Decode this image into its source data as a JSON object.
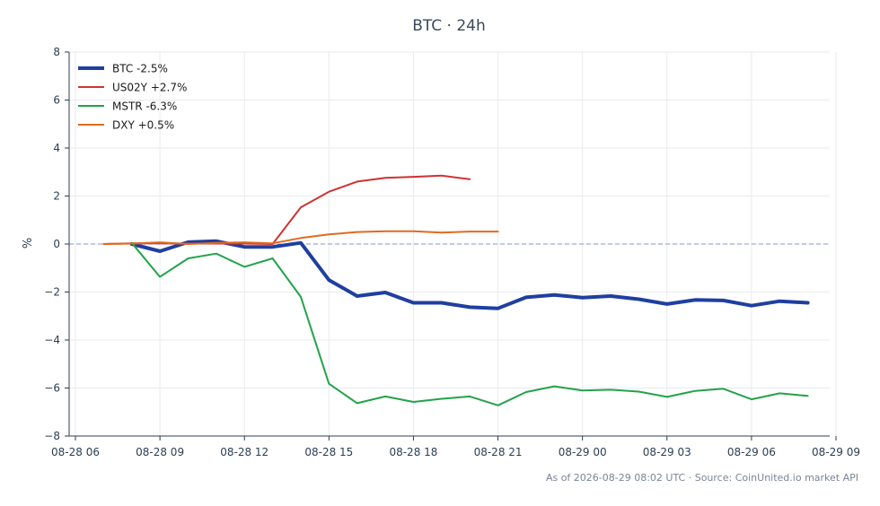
{
  "chart_data": {
    "type": "line",
    "title": "BTC · 24h",
    "xlabel": "",
    "ylabel": "%",
    "ylim": [
      -8,
      8
    ],
    "yticks": [
      -8,
      -6,
      -4,
      -2,
      0,
      2,
      4,
      6,
      8
    ],
    "ytick_labels": [
      "−8",
      "−6",
      "−4",
      "−2",
      "0",
      "2",
      "4",
      "6",
      "8"
    ],
    "xticks": [
      "08-28 06",
      "08-28 09",
      "08-28 12",
      "08-28 15",
      "08-28 18",
      "08-28 21",
      "08-29 00",
      "08-29 03",
      "08-29 06",
      "08-29 09"
    ],
    "xlim_hours": [
      6,
      33
    ],
    "grid": true,
    "zero_line": true,
    "legend_position": "top-left",
    "series": [
      {
        "name": "BTC -2.5%",
        "color": "#1f3fa0",
        "x": [
          "08-28 08",
          "08-28 09",
          "08-28 10",
          "08-28 11",
          "08-28 12",
          "08-28 13",
          "08-28 14",
          "08-28 15",
          "08-28 16",
          "08-28 17",
          "08-28 18",
          "08-28 19",
          "08-28 20",
          "08-28 21",
          "08-28 22",
          "08-28 23",
          "08-29 00",
          "08-29 01",
          "08-29 02",
          "08-29 03",
          "08-29 04",
          "08-29 05",
          "08-29 06",
          "08-29 07",
          "08-29 08"
        ],
        "values": [
          0.0,
          -0.3,
          0.08,
          0.12,
          -0.12,
          -0.12,
          0.05,
          -1.5,
          -2.17,
          -2.02,
          -2.45,
          -2.45,
          -2.63,
          -2.68,
          -2.22,
          -2.12,
          -2.23,
          -2.17,
          -2.3,
          -2.5,
          -2.33,
          -2.35,
          -2.57,
          -2.38,
          -2.45
        ]
      },
      {
        "name": "US02Y +2.7%",
        "color": "#d03232",
        "x": [
          "08-28 07",
          "08-28 08",
          "08-28 09",
          "08-28 10",
          "08-28 11",
          "08-28 12",
          "08-28 13",
          "08-28 14",
          "08-28 15",
          "08-28 16",
          "08-28 17",
          "08-28 18",
          "08-28 19",
          "08-28 20"
        ],
        "values": [
          0.0,
          0.03,
          0.03,
          0.02,
          0.02,
          0.02,
          0.0,
          1.53,
          2.18,
          2.6,
          2.76,
          2.8,
          2.85,
          2.7
        ]
      },
      {
        "name": "MSTR -6.3%",
        "color": "#22a34a",
        "x": [
          "08-28 08",
          "08-28 09",
          "08-28 10",
          "08-28 11",
          "08-28 12",
          "08-28 13",
          "08-28 14",
          "08-28 15",
          "08-28 16",
          "08-28 17",
          "08-28 18",
          "08-28 19",
          "08-28 20",
          "08-28 21",
          "08-28 22",
          "08-28 23",
          "08-29 00",
          "08-29 01",
          "08-29 02",
          "08-29 03",
          "08-29 04",
          "08-29 05",
          "08-29 06",
          "08-29 07",
          "08-29 08"
        ],
        "values": [
          0.05,
          -1.37,
          -0.6,
          -0.4,
          -0.95,
          -0.6,
          -2.2,
          -5.82,
          -6.63,
          -6.35,
          -6.58,
          -6.45,
          -6.35,
          -6.72,
          -6.17,
          -5.93,
          -6.1,
          -6.07,
          -6.15,
          -6.37,
          -6.12,
          -6.03,
          -6.47,
          -6.22,
          -6.33
        ]
      },
      {
        "name": "DXY +0.5%",
        "color": "#e06a1e",
        "x": [
          "08-28 07",
          "08-28 08",
          "08-28 09",
          "08-28 10",
          "08-28 11",
          "08-28 12",
          "08-28 13",
          "08-28 14",
          "08-28 15",
          "08-28 16",
          "08-28 17",
          "08-28 18",
          "08-28 19",
          "08-28 20",
          "08-28 21"
        ],
        "values": [
          0.0,
          0.02,
          0.07,
          0.0,
          0.05,
          0.07,
          0.03,
          0.25,
          0.4,
          0.5,
          0.53,
          0.53,
          0.48,
          0.52,
          0.52
        ]
      }
    ],
    "source_note": "As of 2026-08-29 08:02 UTC · Source: CoinUnited.io market API"
  }
}
